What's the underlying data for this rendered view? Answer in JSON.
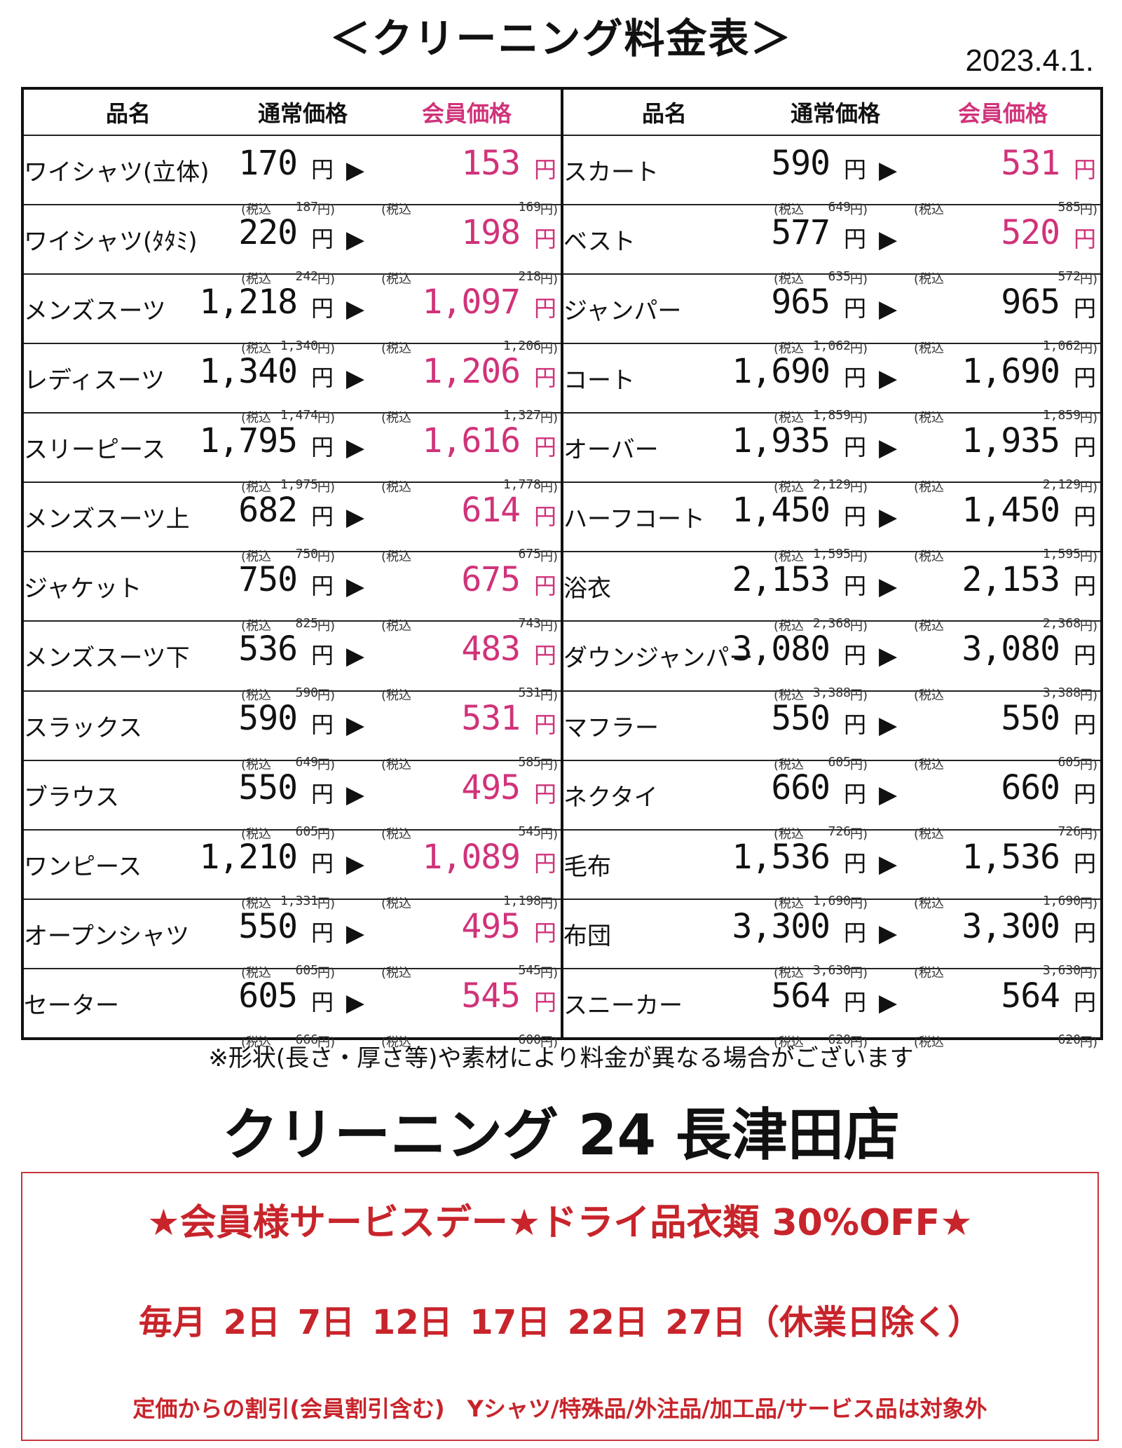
{
  "title": "＜クリーニング料金表＞",
  "date": "2023.4.1.",
  "headers": {
    "item": "品名",
    "regular": "通常価格",
    "member": "会員価格"
  },
  "units": {
    "yen": "円",
    "tax_label": "(税込",
    "tax_close": "円)",
    "arrow": "▶"
  },
  "left_items": [
    {
      "name": "ワイシャツ(立体)",
      "reg": "170",
      "reg_tax": "187",
      "mem": "153",
      "mem_tax": "169"
    },
    {
      "name": "ワイシャツ(ﾀﾀﾐ)",
      "reg": "220",
      "reg_tax": "242",
      "mem": "198",
      "mem_tax": "218"
    },
    {
      "name": "メンズスーツ",
      "reg": "1,218",
      "reg_tax": "1,340",
      "mem": "1,097",
      "mem_tax": "1,206"
    },
    {
      "name": "レディスーツ",
      "reg": "1,340",
      "reg_tax": "1,474",
      "mem": "1,206",
      "mem_tax": "1,327"
    },
    {
      "name": "スリーピース",
      "reg": "1,795",
      "reg_tax": "1,975",
      "mem": "1,616",
      "mem_tax": "1,778"
    },
    {
      "name": "メンズスーツ上",
      "reg": "682",
      "reg_tax": "750",
      "mem": "614",
      "mem_tax": "675"
    },
    {
      "name": "ジャケット",
      "reg": "750",
      "reg_tax": "825",
      "mem": "675",
      "mem_tax": "743"
    },
    {
      "name": "メンズスーツ下",
      "reg": "536",
      "reg_tax": "590",
      "mem": "483",
      "mem_tax": "531"
    },
    {
      "name": "スラックス",
      "reg": "590",
      "reg_tax": "649",
      "mem": "531",
      "mem_tax": "585"
    },
    {
      "name": "ブラウス",
      "reg": "550",
      "reg_tax": "605",
      "mem": "495",
      "mem_tax": "545"
    },
    {
      "name": "ワンピース",
      "reg": "1,210",
      "reg_tax": "1,331",
      "mem": "1,089",
      "mem_tax": "1,198"
    },
    {
      "name": "オープンシャツ",
      "reg": "550",
      "reg_tax": "605",
      "mem": "495",
      "mem_tax": "545"
    },
    {
      "name": "セーター",
      "reg": "605",
      "reg_tax": "666",
      "mem": "545",
      "mem_tax": "600"
    }
  ],
  "right_items": [
    {
      "name": "スカート",
      "reg": "590",
      "reg_tax": "649",
      "mem": "531",
      "mem_tax": "585",
      "pink": true
    },
    {
      "name": "ベスト",
      "reg": "577",
      "reg_tax": "635",
      "mem": "520",
      "mem_tax": "572",
      "pink": true
    },
    {
      "name": "ジャンパー",
      "reg": "965",
      "reg_tax": "1,062",
      "mem": "965",
      "mem_tax": "1,062",
      "pink": false
    },
    {
      "name": "コート",
      "reg": "1,690",
      "reg_tax": "1,859",
      "mem": "1,690",
      "mem_tax": "1,859",
      "pink": false
    },
    {
      "name": "オーバー",
      "reg": "1,935",
      "reg_tax": "2,129",
      "mem": "1,935",
      "mem_tax": "2,129",
      "pink": false
    },
    {
      "name": "ハーフコート",
      "reg": "1,450",
      "reg_tax": "1,595",
      "mem": "1,450",
      "mem_tax": "1,595",
      "pink": false
    },
    {
      "name": "浴衣",
      "reg": "2,153",
      "reg_tax": "2,368",
      "mem": "2,153",
      "mem_tax": "2,368",
      "pink": false
    },
    {
      "name": "ダウンジャンパー",
      "reg": "3,080",
      "reg_tax": "3,388",
      "mem": "3,080",
      "mem_tax": "3,388",
      "pink": false
    },
    {
      "name": "マフラー",
      "reg": "550",
      "reg_tax": "605",
      "mem": "550",
      "mem_tax": "605",
      "pink": false
    },
    {
      "name": "ネクタイ",
      "reg": "660",
      "reg_tax": "726",
      "mem": "660",
      "mem_tax": "726",
      "pink": false
    },
    {
      "name": "毛布",
      "reg": "1,536",
      "reg_tax": "1,690",
      "mem": "1,536",
      "mem_tax": "1,690",
      "pink": false
    },
    {
      "name": "布団",
      "reg": "3,300",
      "reg_tax": "3,630",
      "mem": "3,300",
      "mem_tax": "3,630",
      "pink": false
    },
    {
      "name": "スニーカー",
      "reg": "564",
      "reg_tax": "620",
      "mem": "564",
      "mem_tax": "620",
      "pink": false
    }
  ],
  "note": "※形状(長さ・厚さ等)や素材により料金が異なる場合がございます",
  "shop_name": "クリーニング 24 長津田店",
  "promo": {
    "headline": "★会員様サービスデー★ドライ品衣類 30%OFF★",
    "days": "毎月 2日 7日 12日 17日 22日 27日（休業日除く）",
    "footnote": "定価からの割引(会員割引含む)　Yシャツ/特殊品/外注品/加工品/サービス品は対象外"
  },
  "colors": {
    "member_pink": "#d0337a",
    "promo_red": "#c8242b"
  }
}
